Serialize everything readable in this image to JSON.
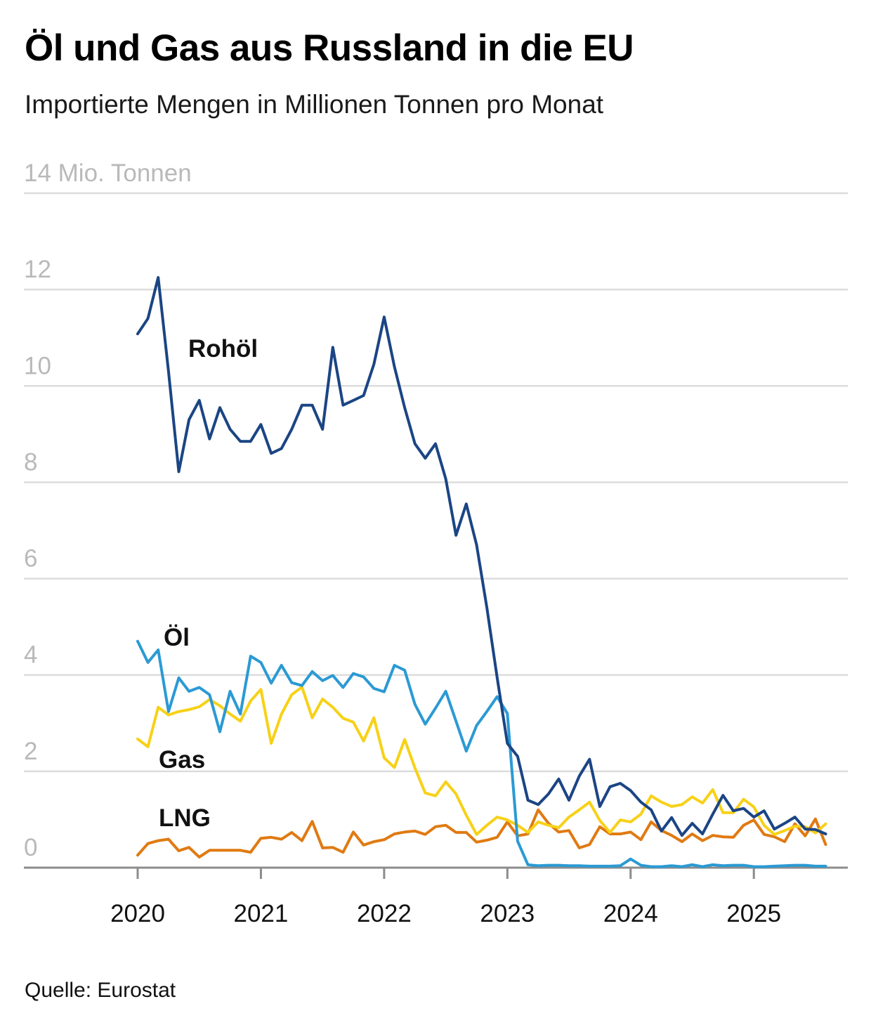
{
  "title": "Öl und Gas aus Russland in die EU",
  "subtitle": "Importierte Mengen in Millionen Tonnen pro Monat",
  "source": "Quelle: Eurostat",
  "colors": {
    "Rohöl": "#1b4584",
    "Öl": "#2b9ad4",
    "Gas": "#f7d117",
    "LNG": "#e07a12",
    "grid": "#dcdcdc",
    "axis": "#8c8c8c"
  },
  "chart_data": {
    "type": "line",
    "title": "Öl und Gas aus Russland in die EU",
    "subtitle": "Importierte Mengen in Millionen Tonnen pro Monat",
    "xlabel": "",
    "ylabel": "Mio. Tonnen",
    "x_start": "2020-01",
    "x_frequency": "monthly",
    "xlim": [
      "2019-01",
      "2025-12"
    ],
    "ylim": [
      0,
      14
    ],
    "grid": true,
    "legend": "inline labels",
    "y_ticks": [
      {
        "value": 0,
        "label": "0"
      },
      {
        "value": 2,
        "label": "2"
      },
      {
        "value": 4,
        "label": "4"
      },
      {
        "value": 6,
        "label": "6"
      },
      {
        "value": 8,
        "label": "8"
      },
      {
        "value": 10,
        "label": "10"
      },
      {
        "value": 12,
        "label": "12"
      },
      {
        "value": 14,
        "label": "14 Mio. Tonnen"
      }
    ],
    "x_ticks": [
      {
        "month_index": 0,
        "label": "2020"
      },
      {
        "month_index": 12,
        "label": "2021"
      },
      {
        "month_index": 24,
        "label": "2022"
      },
      {
        "month_index": 36,
        "label": "2023"
      },
      {
        "month_index": 48,
        "label": "2024"
      },
      {
        "month_index": 60,
        "label": "2025"
      }
    ],
    "series": [
      {
        "name": "Rohöl",
        "label": "Rohöl",
        "values": [
          11.08,
          11.4,
          12.25,
          10.3,
          8.22,
          9.3,
          9.7,
          8.9,
          9.55,
          9.1,
          8.85,
          8.85,
          9.2,
          8.6,
          8.7,
          9.1,
          9.6,
          9.6,
          9.1,
          10.8,
          9.6,
          9.7,
          9.8,
          10.45,
          11.43,
          10.4,
          9.55,
          8.8,
          8.5,
          8.8,
          8.07,
          6.9,
          7.55,
          6.7,
          5.4,
          3.95,
          2.58,
          2.31,
          1.4,
          1.31,
          1.53,
          1.84,
          1.4,
          1.9,
          2.25,
          1.27,
          1.68,
          1.75,
          1.6,
          1.36,
          1.2,
          0.76,
          1.04,
          0.67,
          0.92,
          0.7,
          1.11,
          1.5,
          1.18,
          1.23,
          1.05,
          1.18,
          0.8,
          0.92,
          1.05,
          0.8,
          0.79,
          0.7
        ]
      },
      {
        "name": "Öl",
        "label": "Öl",
        "values": [
          4.7,
          4.26,
          4.52,
          3.24,
          3.94,
          3.66,
          3.74,
          3.59,
          2.82,
          3.66,
          3.19,
          4.39,
          4.26,
          3.83,
          4.2,
          3.84,
          3.78,
          4.07,
          3.88,
          3.99,
          3.74,
          4.03,
          3.96,
          3.72,
          3.65,
          4.2,
          4.1,
          3.39,
          2.98,
          3.31,
          3.66,
          3.04,
          2.42,
          2.95,
          3.24,
          3.55,
          3.2,
          0.55,
          0.06,
          0.04,
          0.05,
          0.05,
          0.04,
          0.04,
          0.03,
          0.03,
          0.03,
          0.04,
          0.18,
          0.05,
          0.02,
          0.02,
          0.04,
          0.02,
          0.06,
          0.02,
          0.06,
          0.04,
          0.05,
          0.05,
          0.02,
          0.02,
          0.03,
          0.04,
          0.05,
          0.05,
          0.03,
          0.03
        ]
      },
      {
        "name": "Gas",
        "label": "Gas",
        "values": [
          2.67,
          2.51,
          3.33,
          3.17,
          3.24,
          3.28,
          3.34,
          3.49,
          3.36,
          3.19,
          3.04,
          3.46,
          3.7,
          2.58,
          3.19,
          3.59,
          3.75,
          3.11,
          3.5,
          3.33,
          3.1,
          3.02,
          2.63,
          3.11,
          2.28,
          2.08,
          2.66,
          2.07,
          1.55,
          1.49,
          1.78,
          1.53,
          1.09,
          0.69,
          0.88,
          1.05,
          0.99,
          0.88,
          0.73,
          0.95,
          0.88,
          0.83,
          1.05,
          1.2,
          1.36,
          0.98,
          0.73,
          0.99,
          0.95,
          1.11,
          1.49,
          1.36,
          1.27,
          1.31,
          1.47,
          1.34,
          1.62,
          1.14,
          1.14,
          1.42,
          1.26,
          0.88,
          0.69,
          0.77,
          0.86,
          0.85,
          0.72,
          0.91
        ]
      },
      {
        "name": "LNG",
        "label": "LNG",
        "values": [
          0.26,
          0.5,
          0.56,
          0.59,
          0.35,
          0.42,
          0.22,
          0.36,
          0.36,
          0.36,
          0.36,
          0.32,
          0.61,
          0.63,
          0.59,
          0.73,
          0.56,
          0.96,
          0.41,
          0.42,
          0.32,
          0.74,
          0.47,
          0.54,
          0.58,
          0.7,
          0.74,
          0.76,
          0.69,
          0.85,
          0.88,
          0.73,
          0.73,
          0.53,
          0.57,
          0.63,
          0.95,
          0.66,
          0.7,
          1.2,
          0.92,
          0.74,
          0.77,
          0.41,
          0.48,
          0.85,
          0.7,
          0.7,
          0.74,
          0.58,
          0.95,
          0.77,
          0.67,
          0.54,
          0.7,
          0.56,
          0.67,
          0.64,
          0.63,
          0.88,
          0.99,
          0.69,
          0.64,
          0.54,
          0.91,
          0.66,
          1.01,
          0.48
        ]
      }
    ]
  }
}
